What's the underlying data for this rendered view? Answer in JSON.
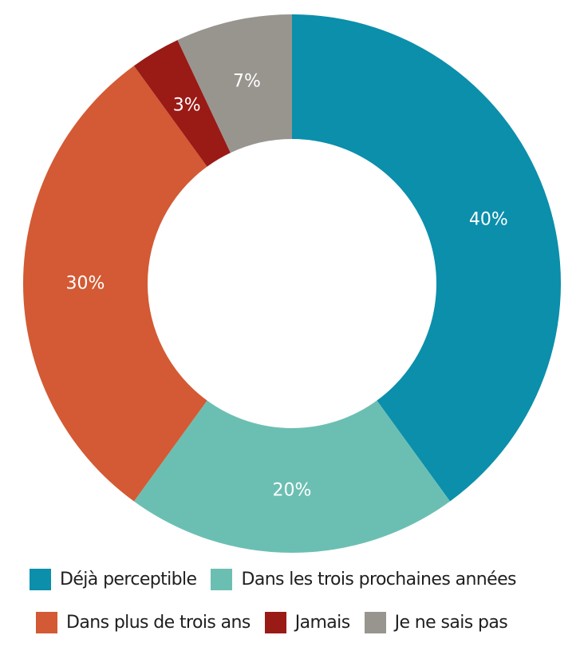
{
  "chart_data": {
    "type": "pie",
    "variant": "donut",
    "start": "top",
    "direction": "clockwise",
    "title": "",
    "legend_position": "bottom",
    "slices": [
      {
        "label": "Déjà perceptible",
        "value": 40,
        "value_label": "40%",
        "color": "#0b8fab"
      },
      {
        "label": "Dans les trois prochaines années",
        "value": 20,
        "value_label": "20%",
        "color": "#6bbfb2"
      },
      {
        "label": "Dans plus de trois ans",
        "value": 30,
        "value_label": "30%",
        "color": "#d35a34"
      },
      {
        "label": "Jamais",
        "value": 3,
        "value_label": "3%",
        "color": "#9a1a16"
      },
      {
        "label": "Je ne sais pas",
        "value": 7,
        "value_label": "7%",
        "color": "#98958f"
      }
    ]
  }
}
